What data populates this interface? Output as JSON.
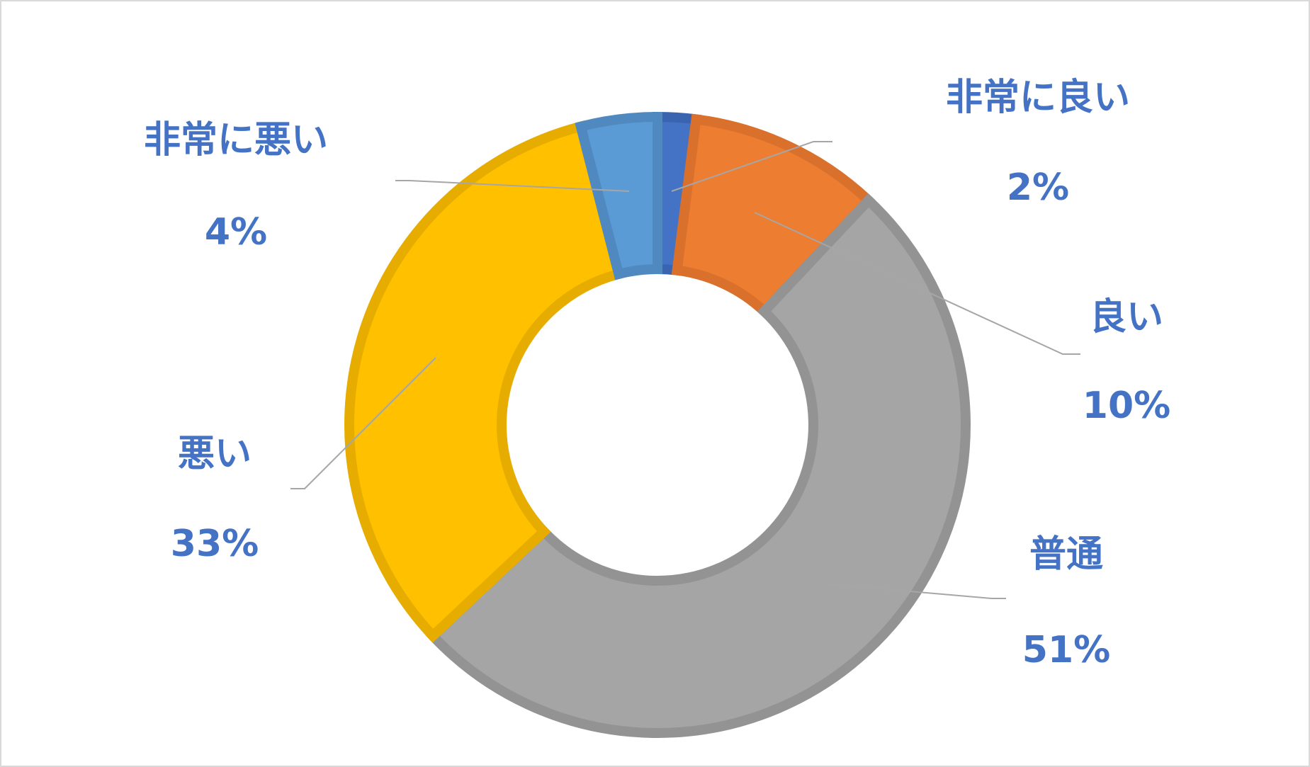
{
  "chart_data": {
    "type": "pie",
    "variant": "donut",
    "title": "",
    "legend": "none",
    "slices": [
      {
        "label": "非常に良い",
        "value": 2,
        "display": "2%",
        "color": "#4472c4",
        "border": "#3a64b0"
      },
      {
        "label": "良い",
        "value": 10,
        "display": "10%",
        "color": "#ed7d31",
        "border": "#d9702b"
      },
      {
        "label": "普通",
        "value": 51,
        "display": "51%",
        "color": "#a5a5a5",
        "border": "#939393"
      },
      {
        "label": "悪い",
        "value": 33,
        "display": "33%",
        "color": "#ffc000",
        "border": "#e6ad00"
      },
      {
        "label": "非常に悪い",
        "value": 4,
        "display": "4%",
        "color": "#5b9bd5",
        "border": "#4f89c0"
      }
    ],
    "label_color": "#4472c4",
    "leader_line_color": "#a6a6a6"
  }
}
